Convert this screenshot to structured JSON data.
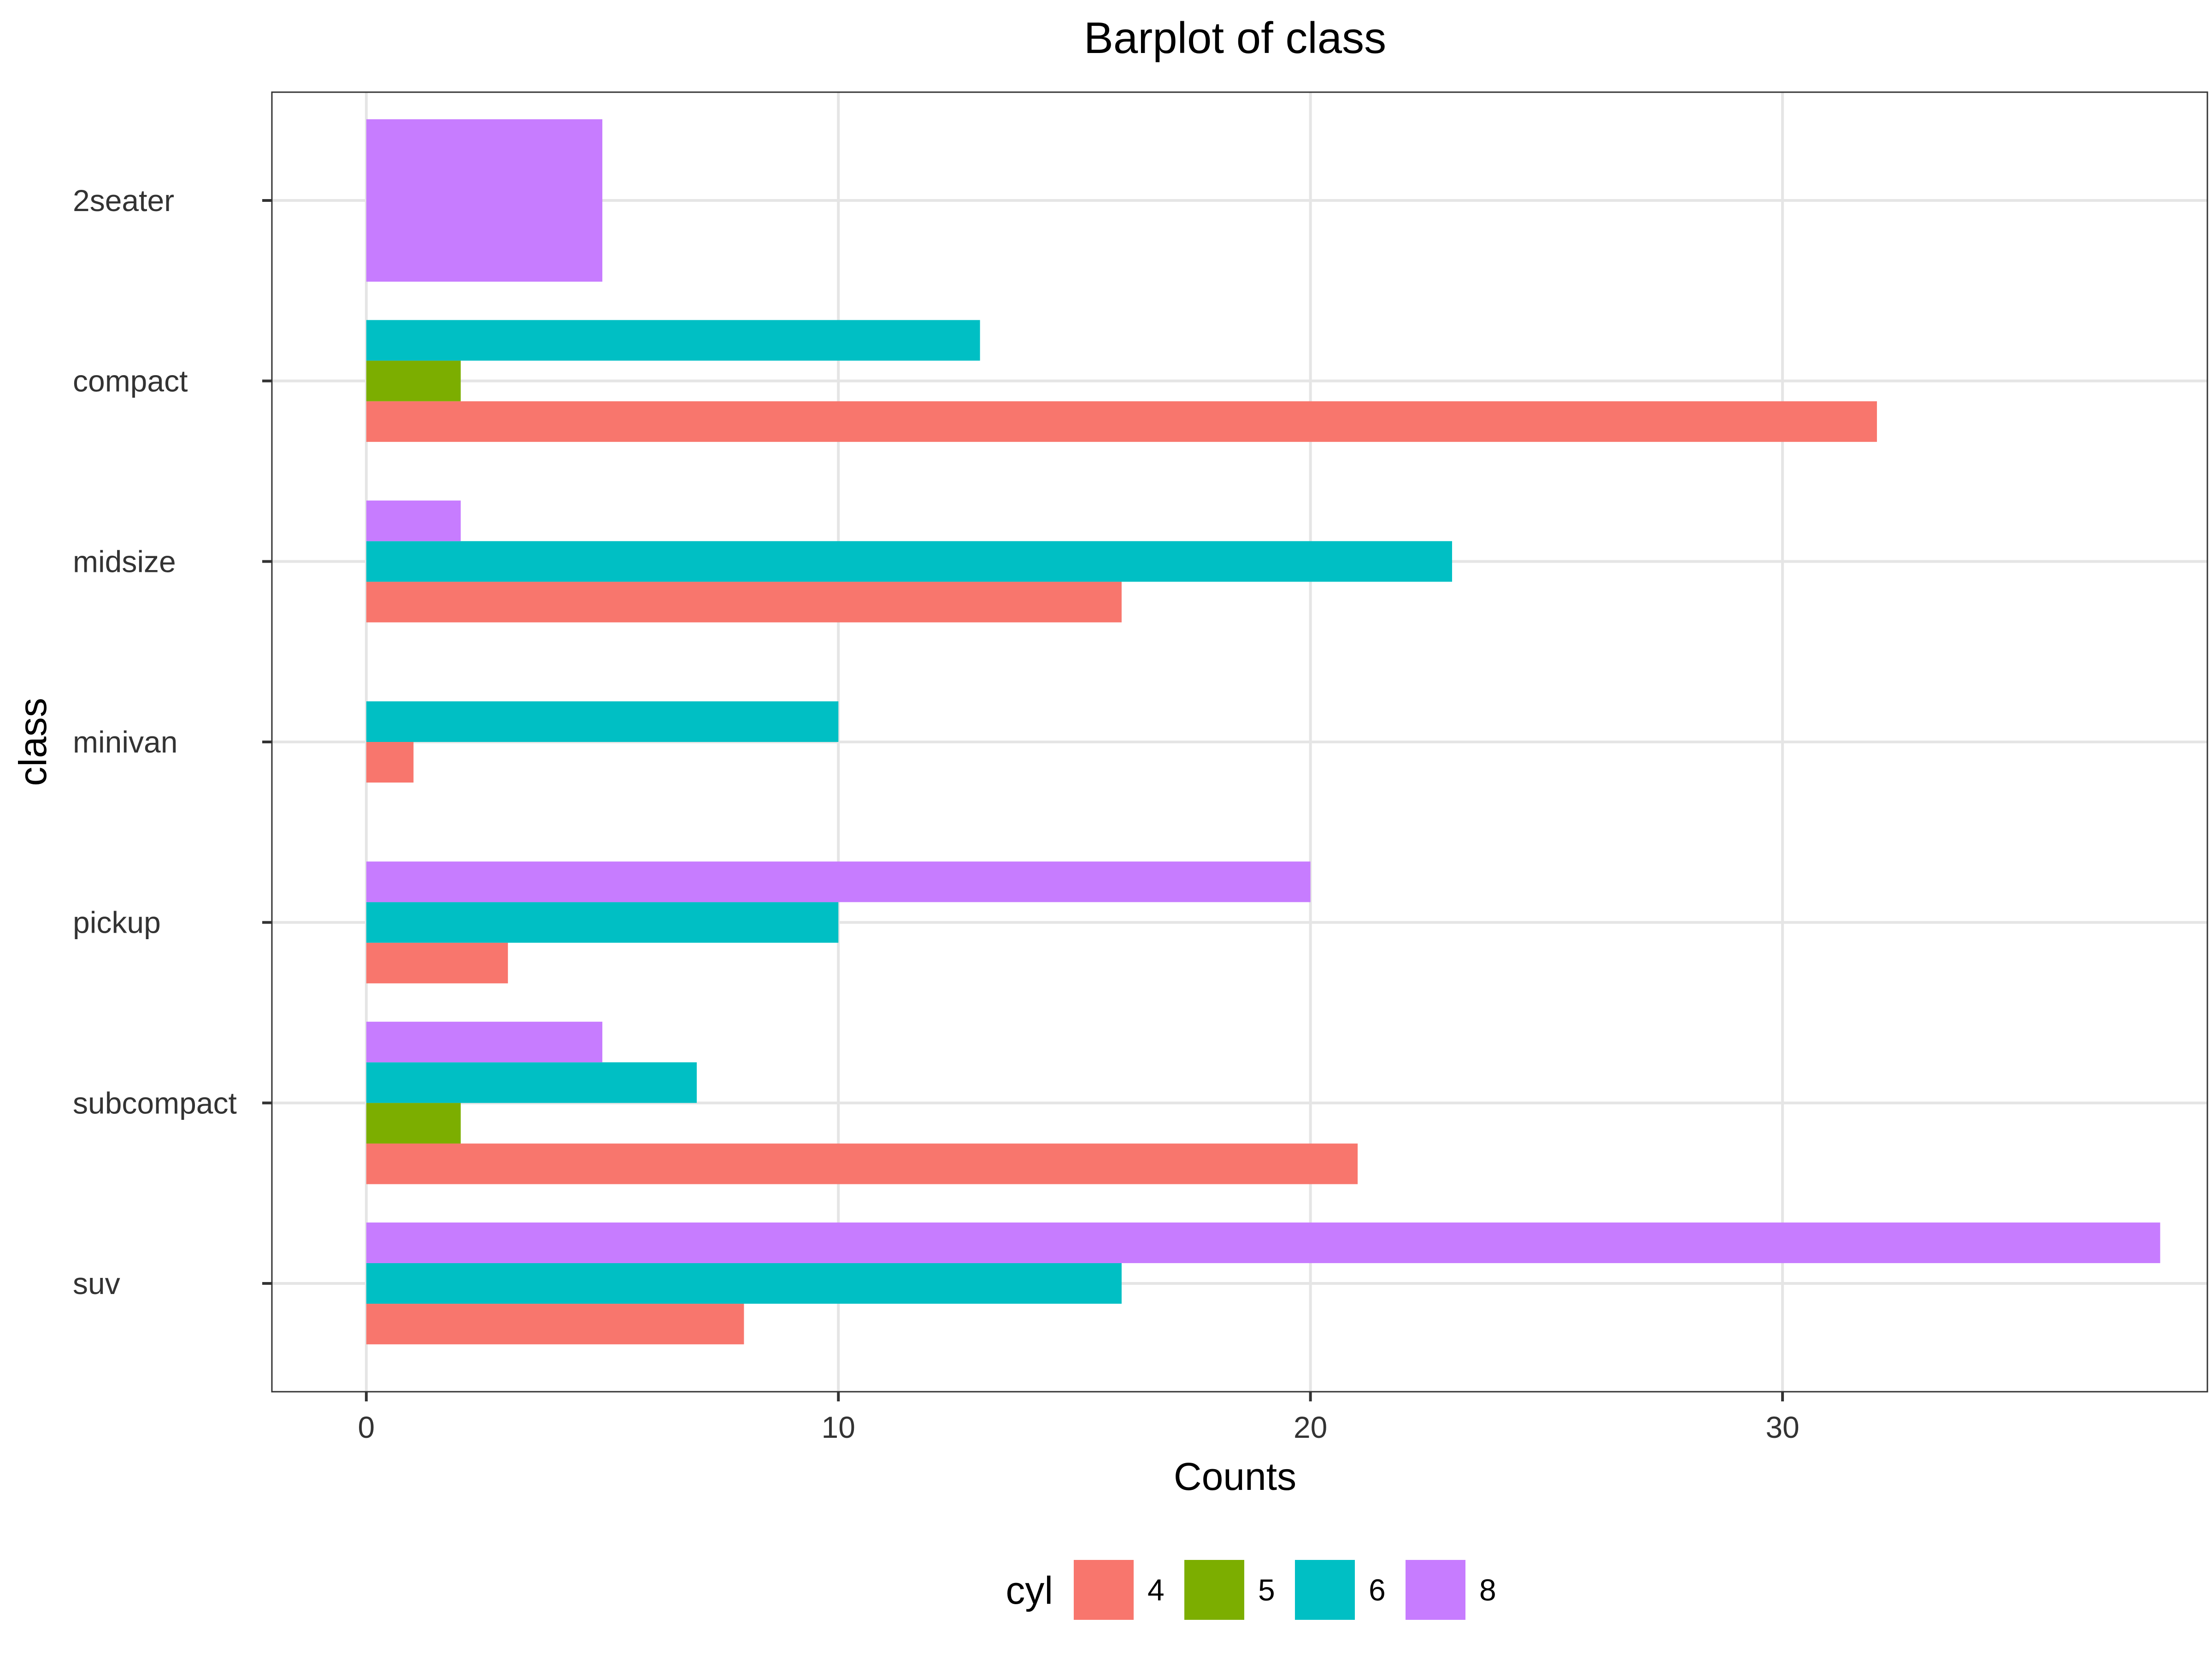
{
  "chart_data": {
    "type": "bar",
    "orientation": "horizontal",
    "title": "Barplot of class",
    "xlabel": "Counts",
    "ylabel": "class",
    "xlim": [
      -2,
      39
    ],
    "x_ticks": [
      0,
      10,
      20,
      30
    ],
    "grid": true,
    "legend": {
      "title": "cyl",
      "placement": "bottom"
    },
    "categories": [
      "2seater",
      "compact",
      "midsize",
      "minivan",
      "pickup",
      "subcompact",
      "suv"
    ],
    "series": [
      {
        "name": "4",
        "color": "#F8766D",
        "values": [
          null,
          32,
          16,
          1,
          3,
          21,
          8
        ]
      },
      {
        "name": "5",
        "color": "#7CAE00",
        "values": [
          null,
          2,
          null,
          null,
          null,
          2,
          null
        ]
      },
      {
        "name": "6",
        "color": "#00BFC4",
        "values": [
          null,
          13,
          23,
          10,
          10,
          7,
          16
        ]
      },
      {
        "name": "8",
        "color": "#C77CFF",
        "values": [
          5,
          null,
          2,
          null,
          20,
          5,
          38
        ]
      }
    ]
  }
}
